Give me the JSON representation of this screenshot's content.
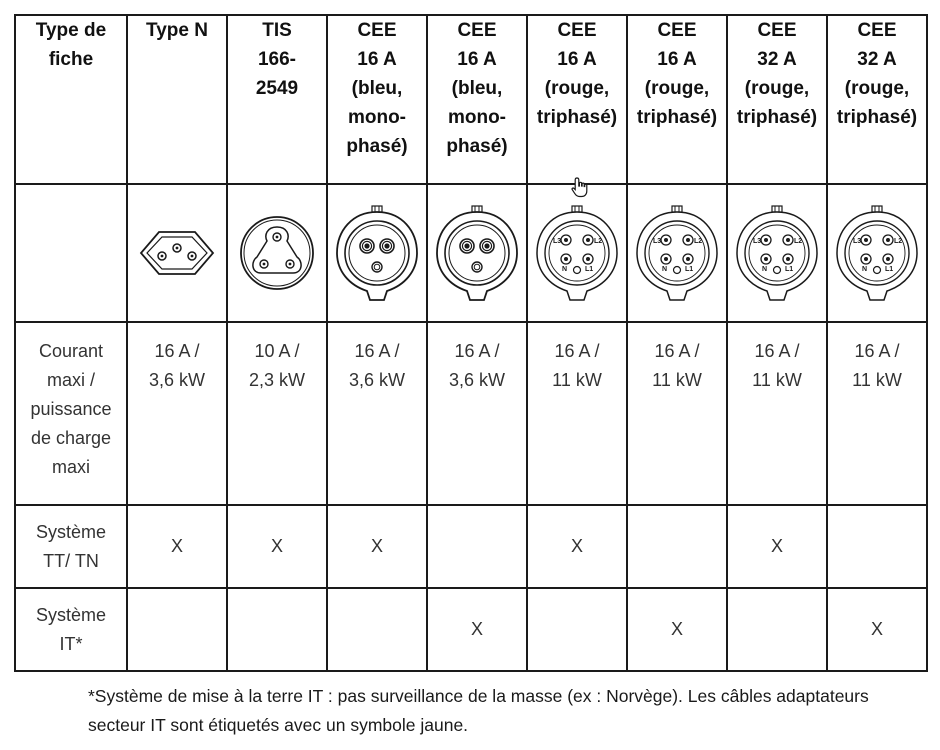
{
  "header": {
    "label": "Type de\nfiche",
    "columns": [
      "Type N",
      "TIS\n166-\n2549",
      "CEE\n16 A\n(bleu,\nmono-\nphasé)",
      "CEE\n16 A\n(bleu,\nmono-\nphasé)",
      "CEE\n16 A\n(rouge,\ntriphasé)",
      "CEE\n16 A\n(rouge,\ntriphasé)",
      "CEE\n32 A\n(rouge,\ntriphasé)",
      "CEE\n32 A\n(rouge,\ntriphasé)"
    ]
  },
  "icons": [
    "plug-type-n-icon",
    "plug-tis-166-2549-icon",
    "plug-cee-16a-single-phase-icon",
    "plug-cee-16a-single-phase-icon",
    "plug-cee-16a-three-phase-icon",
    "plug-cee-16a-three-phase-icon",
    "plug-cee-32a-three-phase-icon",
    "plug-cee-32a-three-phase-icon"
  ],
  "pin_labels": {
    "l3": "L3",
    "l2": "L2",
    "n": "N",
    "l1": "L1"
  },
  "power_row": {
    "label": "Courant\nmaxi /\npuissance\nde charge\nmaxi",
    "values": [
      "16 A /\n3,6 kW",
      "10 A /\n2,3 kW",
      "16 A /\n3,6 kW",
      "16 A /\n3,6 kW",
      "16 A /\n11 kW",
      "16 A /\n11 kW",
      "16 A /\n11 kW",
      "16 A /\n11 kW"
    ]
  },
  "tt_tn_row": {
    "label": "Système\nTT/ TN",
    "values": [
      "X",
      "X",
      "X",
      "",
      "X",
      "",
      "X",
      ""
    ]
  },
  "it_row": {
    "label": "Système\nIT*",
    "values": [
      "",
      "",
      "",
      "X",
      "",
      "X",
      "",
      "X"
    ]
  },
  "footnote": "*Système de mise à la terre IT : pas surveillance de la masse (ex : Norvège). Les câbles adaptateurs secteur IT sont étiquetés avec un symbole jaune.",
  "colors": {
    "line": "#1a1a1a",
    "text": "#333333"
  }
}
